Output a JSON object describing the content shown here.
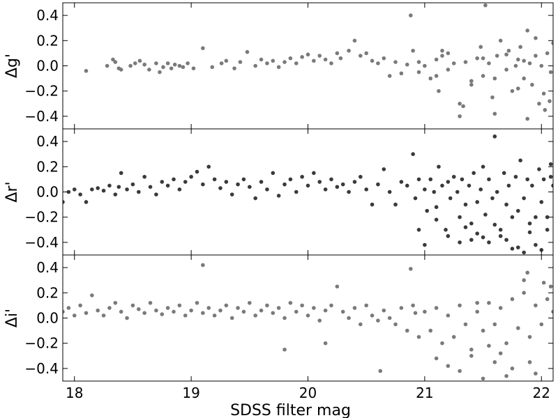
{
  "chart_data": [
    {
      "type": "scatter",
      "ylabel": "Δg'",
      "xlim": [
        17.9,
        22.1
      ],
      "ylim": [
        -0.5,
        0.5
      ],
      "yticks": [
        -0.4,
        -0.2,
        0.0,
        0.2,
        0.4
      ],
      "ytick_labels": [
        "−0.4",
        "−0.2",
        "0.0",
        "0.2",
        "0.4"
      ],
      "marker_color": "#7a7a7a",
      "series": [
        {
          "x": [
            18.1,
            18.28,
            18.33,
            18.35,
            18.38,
            18.4,
            18.48,
            18.52,
            18.56,
            18.6,
            18.64,
            18.7,
            18.73,
            18.76,
            18.8,
            18.83,
            18.86,
            18.9,
            18.93,
            18.97,
            19.02,
            19.1,
            19.18,
            19.26,
            19.3,
            19.37,
            19.42,
            19.48,
            19.55,
            19.6,
            19.65,
            19.7,
            19.75,
            19.8,
            19.85,
            19.9,
            19.95,
            20.0,
            20.05,
            20.1,
            20.15,
            20.2,
            20.25,
            20.28,
            20.35,
            20.4,
            20.45,
            20.5,
            20.55,
            20.6,
            20.65,
            20.7,
            20.75,
            20.8,
            20.85,
            20.88,
            20.9,
            20.95,
            21.0,
            21.05,
            21.1,
            21.12,
            21.15,
            21.2,
            21.25,
            21.3,
            21.3,
            21.35,
            21.4,
            21.45,
            21.48,
            21.5,
            21.52,
            21.55,
            21.6,
            21.62,
            21.65,
            21.7,
            21.72,
            21.75,
            21.78,
            21.8,
            21.82,
            21.85,
            21.88,
            21.9,
            21.92,
            21.95,
            21.98,
            22.0,
            22.02,
            22.05,
            22.08,
            22.1,
            21.6,
            21.88,
            21.58,
            21.7,
            21.4,
            21.95,
            22.03,
            21.2,
            21.1,
            20.95,
            21.8,
            21.5,
            22.07,
            21.33,
            21.15,
            21.85
          ],
          "y": [
            -0.04,
            0.0,
            0.05,
            0.03,
            -0.02,
            -0.03,
            0.0,
            0.02,
            0.04,
            0.01,
            -0.03,
            0.02,
            -0.05,
            -0.01,
            0.02,
            -0.02,
            0.01,
            0.0,
            -0.01,
            0.02,
            -0.02,
            0.14,
            -0.01,
            0.02,
            0.04,
            -0.02,
            0.03,
            0.11,
            0.0,
            0.05,
            0.02,
            0.04,
            -0.01,
            0.03,
            0.06,
            0.02,
            0.07,
            0.09,
            0.04,
            0.08,
            0.05,
            0.02,
            0.1,
            0.06,
            0.12,
            0.2,
            0.08,
            0.1,
            0.04,
            0.02,
            0.06,
            -0.08,
            0.03,
            -0.06,
            0.01,
            0.4,
            0.12,
            -0.05,
            0.0,
            -0.1,
            0.05,
            -0.2,
            0.08,
            -0.03,
            0.02,
            -0.3,
            -0.4,
            0.03,
            -0.15,
            0.06,
            0.15,
            -0.08,
            0.48,
            0.02,
            -0.1,
            0.08,
            0.2,
            -0.03,
            0.12,
            -0.2,
            0.0,
            0.05,
            0.15,
            -0.1,
            0.28,
            0.02,
            -0.15,
            0.08,
            -0.3,
            0.0,
            -0.22,
            0.1,
            -0.05,
            0.18,
            -0.38,
            -0.42,
            -0.25,
            0.09,
            -0.12,
            0.22,
            -0.35,
            0.1,
            -0.08,
            0.03,
            -0.18,
            0.06,
            -0.28,
            -0.32,
            0.12,
            0.04
          ]
        }
      ]
    },
    {
      "type": "scatter",
      "ylabel": "Δr'",
      "xlim": [
        17.9,
        22.1
      ],
      "ylim": [
        -0.5,
        0.5
      ],
      "yticks": [
        -0.4,
        -0.2,
        0.0,
        0.2,
        0.4
      ],
      "ytick_labels": [
        "−0.4",
        "−0.2",
        "0.0",
        "0.2",
        "0.4"
      ],
      "marker_color": "#3a3a3a",
      "series": [
        {
          "x": [
            17.9,
            17.95,
            18.0,
            18.05,
            18.1,
            18.15,
            18.2,
            18.25,
            18.3,
            18.35,
            18.38,
            18.4,
            18.45,
            18.5,
            18.55,
            18.6,
            18.65,
            18.7,
            18.75,
            18.8,
            18.85,
            18.9,
            18.95,
            19.0,
            19.05,
            19.1,
            19.15,
            19.2,
            19.25,
            19.3,
            19.35,
            19.4,
            19.45,
            19.5,
            19.55,
            19.6,
            19.65,
            19.7,
            19.75,
            19.8,
            19.85,
            19.9,
            19.95,
            20.0,
            20.05,
            20.1,
            20.15,
            20.2,
            20.25,
            20.3,
            20.35,
            20.4,
            20.45,
            20.5,
            20.55,
            20.6,
            20.65,
            20.7,
            20.75,
            20.8,
            20.85,
            20.9,
            20.92,
            20.95,
            21.0,
            21.02,
            21.05,
            21.08,
            21.1,
            21.12,
            21.15,
            21.18,
            21.2,
            21.22,
            21.25,
            21.28,
            21.3,
            21.32,
            21.35,
            21.38,
            21.4,
            21.42,
            21.45,
            21.48,
            21.5,
            21.52,
            21.55,
            21.58,
            21.6,
            21.62,
            21.65,
            21.68,
            21.7,
            21.72,
            21.75,
            21.78,
            21.8,
            21.82,
            21.85,
            21.88,
            21.9,
            21.92,
            21.95,
            21.98,
            22.0,
            22.02,
            22.05,
            22.08,
            22.1,
            21.55,
            21.75,
            21.65,
            21.85,
            21.95,
            21.4,
            22.0,
            21.7,
            21.9,
            21.6,
            21.8,
            22.05,
            21.45,
            21.3,
            21.2,
            21.0,
            20.95,
            21.1,
            21.5,
            21.35,
            22.08
          ],
          "y": [
            -0.08,
            0.0,
            0.02,
            -0.02,
            -0.08,
            0.02,
            0.03,
            0.01,
            0.05,
            -0.02,
            0.04,
            0.15,
            0.02,
            0.06,
            0.0,
            0.12,
            0.04,
            -0.02,
            0.08,
            0.05,
            0.1,
            0.02,
            0.08,
            0.12,
            0.16,
            0.06,
            0.2,
            0.1,
            0.03,
            0.08,
            -0.02,
            0.06,
            0.1,
            0.04,
            -0.05,
            0.08,
            0.02,
            0.15,
            -0.03,
            0.06,
            0.1,
            0.0,
            0.12,
            0.05,
            0.15,
            0.08,
            0.02,
            0.1,
            0.04,
            0.06,
            0.0,
            0.08,
            0.12,
            0.02,
            -0.1,
            0.06,
            0.18,
            0.0,
            -0.1,
            0.08,
            0.05,
            0.3,
            -0.05,
            0.1,
            0.02,
            -0.15,
            0.1,
            0.0,
            -0.12,
            0.2,
            0.05,
            -0.3,
            0.08,
            -0.05,
            0.12,
            0.0,
            -0.2,
            0.1,
            -0.1,
            0.05,
            -0.25,
            0.15,
            -0.08,
            0.02,
            0.2,
            -0.18,
            0.1,
            -0.05,
            0.44,
            0.0,
            -0.3,
            0.15,
            -0.1,
            0.05,
            -0.2,
            0.12,
            -0.15,
            0.25,
            -0.05,
            0.1,
            -0.25,
            0.05,
            -0.2,
            0.18,
            -0.08,
            0.1,
            -0.3,
            0.22,
            0.05,
            -0.4,
            -0.45,
            -0.35,
            -0.48,
            -0.42,
            -0.38,
            -0.46,
            -0.38,
            -0.32,
            -0.26,
            -0.44,
            -0.2,
            -0.33,
            -0.4,
            -0.35,
            -0.42,
            -0.3,
            -0.22,
            -0.36,
            -0.28,
            0.12
          ]
        }
      ]
    },
    {
      "type": "scatter",
      "ylabel": "Δi'",
      "xlabel": "SDSS filter mag",
      "xlim": [
        17.9,
        22.1
      ],
      "ylim": [
        -0.5,
        0.5
      ],
      "xticks": [
        18,
        19,
        20,
        21,
        22
      ],
      "xtick_labels": [
        "18",
        "19",
        "20",
        "21",
        "22"
      ],
      "yticks": [
        -0.4,
        -0.2,
        0.0,
        0.2,
        0.4
      ],
      "ytick_labels": [
        "−0.4",
        "−0.2",
        "0.0",
        "0.2",
        "0.4"
      ],
      "marker_color": "#7a7a7a",
      "series": [
        {
          "x": [
            17.9,
            17.95,
            18.0,
            18.05,
            18.1,
            18.15,
            18.2,
            18.25,
            18.3,
            18.35,
            18.4,
            18.45,
            18.5,
            18.55,
            18.6,
            18.65,
            18.7,
            18.75,
            18.8,
            18.85,
            18.9,
            18.95,
            19.0,
            19.05,
            19.1,
            19.15,
            19.2,
            19.25,
            19.3,
            19.35,
            19.4,
            19.45,
            19.5,
            19.55,
            19.6,
            19.65,
            19.7,
            19.75,
            19.8,
            19.85,
            19.9,
            19.95,
            20.0,
            20.05,
            20.1,
            20.15,
            20.2,
            20.25,
            20.3,
            20.35,
            20.4,
            20.45,
            20.5,
            20.55,
            20.6,
            20.65,
            20.7,
            20.75,
            20.8,
            20.85,
            20.9,
            20.92,
            20.95,
            21.0,
            21.05,
            21.1,
            21.15,
            21.2,
            21.25,
            21.3,
            21.35,
            21.4,
            21.45,
            21.5,
            21.55,
            21.6,
            21.65,
            21.7,
            21.75,
            21.8,
            21.85,
            21.9,
            21.95,
            22.0,
            22.05,
            22.08,
            22.1,
            19.1,
            20.88,
            21.3,
            21.88,
            21.5,
            21.75,
            21.6,
            21.4,
            21.95,
            21.2,
            20.62,
            21.1,
            21.65,
            21.85,
            22.02,
            21.55,
            21.7,
            19.8,
            20.15,
            21.45,
            21.9
          ],
          "y": [
            0.05,
            0.08,
            0.02,
            0.1,
            0.04,
            0.18,
            0.06,
            0.02,
            0.08,
            0.12,
            0.05,
            0.0,
            0.1,
            0.07,
            0.04,
            0.12,
            0.06,
            0.03,
            0.08,
            0.05,
            0.1,
            0.02,
            0.06,
            0.12,
            0.04,
            0.08,
            0.02,
            0.06,
            0.1,
            0.0,
            0.08,
            0.05,
            0.12,
            0.02,
            0.06,
            0.1,
            0.04,
            0.08,
            0.0,
            0.12,
            0.05,
            0.1,
            0.02,
            0.08,
            -0.02,
            0.06,
            0.1,
            0.25,
            0.05,
            0.0,
            0.08,
            -0.05,
            0.1,
            0.02,
            -0.02,
            0.06,
            0.0,
            -0.05,
            0.08,
            -0.1,
            0.1,
            0.04,
            -0.15,
            0.05,
            -0.1,
            0.08,
            -0.2,
            0.02,
            -0.15,
            0.1,
            -0.05,
            -0.25,
            0.05,
            -0.1,
            0.12,
            -0.05,
            0.08,
            -0.2,
            0.15,
            -0.08,
            0.2,
            -0.15,
            0.1,
            -0.05,
            0.15,
            0.25,
            0.05,
            0.42,
            0.39,
            -0.42,
            0.36,
            -0.48,
            -0.4,
            -0.35,
            -0.3,
            -0.44,
            -0.38,
            -0.42,
            -0.32,
            -0.28,
            0.3,
            0.28,
            -0.22,
            -0.46,
            -0.25,
            -0.2,
            0.12,
            -0.35
          ]
        }
      ]
    }
  ]
}
